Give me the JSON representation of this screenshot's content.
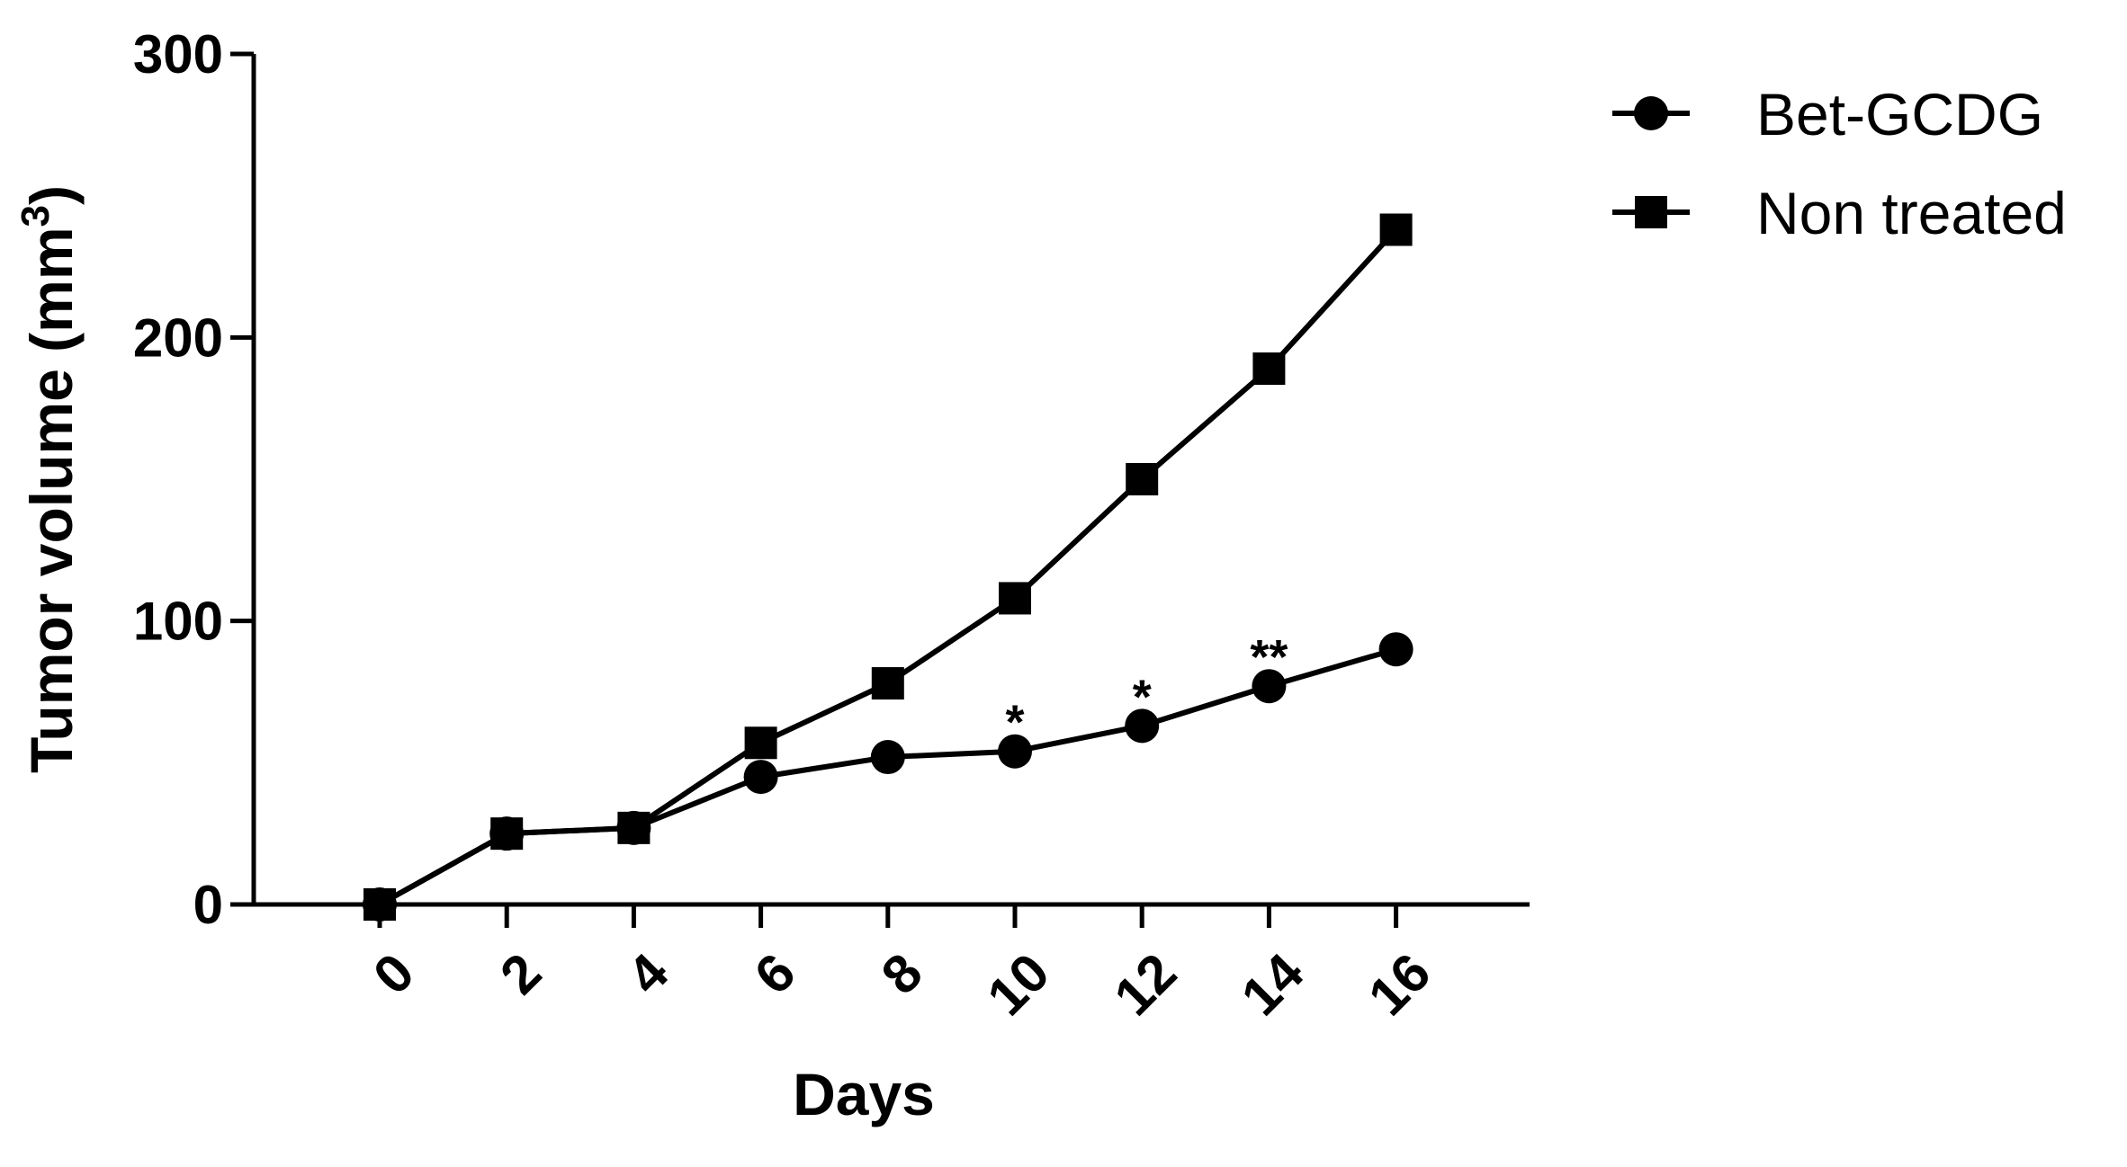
{
  "chart_data": {
    "type": "line",
    "title": "",
    "xlabel": "Days",
    "ylabel": "Tumor volume (mm",
    "ylabel_superscript": "3",
    "ylabel_suffix": ")",
    "x": [
      0,
      2,
      4,
      6,
      8,
      10,
      12,
      14,
      16
    ],
    "x_tick_labels": [
      "0",
      "2",
      "4",
      "6",
      "8",
      "10",
      "12",
      "14",
      "16"
    ],
    "y_tick_labels": [
      "0",
      "100",
      "200",
      "300"
    ],
    "y_ticks": [
      0,
      100,
      200,
      300
    ],
    "xlim": [
      -2,
      18
    ],
    "ylim": [
      0,
      300
    ],
    "grid": false,
    "legend_position": "top-right",
    "series": [
      {
        "name": "Bet-GCDG",
        "marker": "circle",
        "color": "#000000",
        "values": [
          0,
          25,
          27,
          45,
          52,
          54,
          63,
          77,
          90
        ]
      },
      {
        "name": "Non treated",
        "marker": "square",
        "color": "#000000",
        "values": [
          0,
          25,
          27,
          57,
          78,
          108,
          150,
          189,
          238
        ]
      }
    ],
    "annotations": [
      {
        "x": 10,
        "y": 54,
        "text": "*"
      },
      {
        "x": 12,
        "y": 63,
        "text": "*"
      },
      {
        "x": 14,
        "y": 77,
        "text": "**"
      }
    ]
  }
}
